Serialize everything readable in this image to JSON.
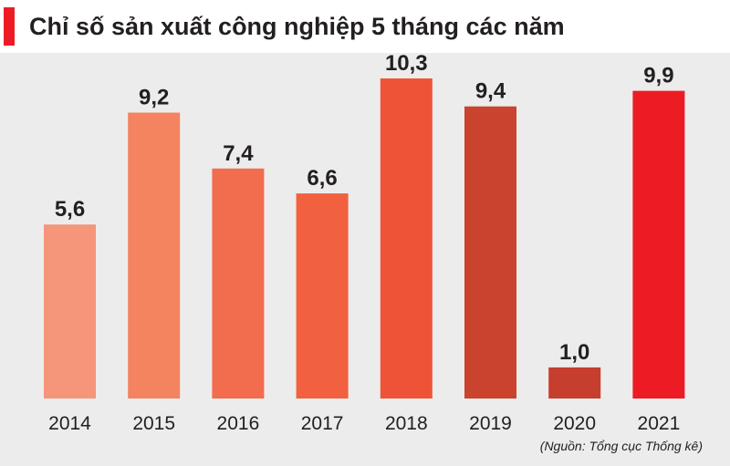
{
  "chart_data": {
    "type": "bar",
    "title": "Chỉ số sản xuất công nghiệp 5 tháng các năm",
    "categories": [
      "2014",
      "2015",
      "2016",
      "2017",
      "2018",
      "2019",
      "2020",
      "2021"
    ],
    "values": [
      5.6,
      9.2,
      7.4,
      6.6,
      10.3,
      9.4,
      1.0,
      9.9
    ],
    "data_labels": [
      "5,6",
      "9,2",
      "7,4",
      "6,6",
      "10,3",
      "9,4",
      "1,0",
      "9,9"
    ],
    "bar_colors": [
      "#f5957a",
      "#f48360",
      "#f26d4d",
      "#f1613f",
      "#ef5337",
      "#c9432f",
      "#c63e2d",
      "#ed1c24"
    ],
    "xlabel": "",
    "ylabel": "",
    "ylim": [
      0,
      10.3
    ],
    "grid": false,
    "legend": "none",
    "source": "(Nguồn: Tổng cục Thống kê)"
  },
  "colors": {
    "background": "#ececec",
    "title_accent": "#ed1c24",
    "text": "#231f20"
  }
}
